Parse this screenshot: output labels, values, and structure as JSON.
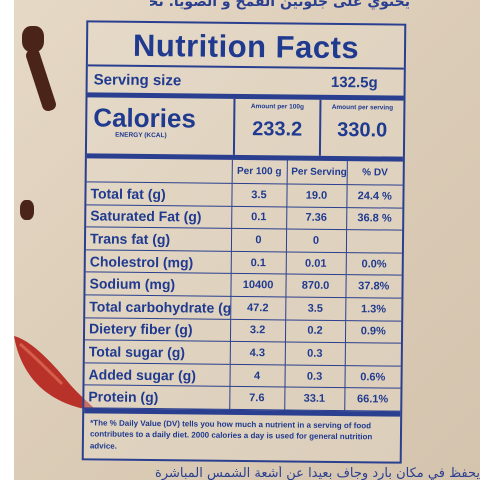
{
  "header_arabic": "يحتوي على جلوتين القمح و الصويا. تحذير الحساسية",
  "footer_arabic": "يحفظ في مكان بارد وجاف بعيدا عن أشعة الشمس المباشرة",
  "panel": {
    "title": "Nutrition Facts",
    "serving_label": "Serving size",
    "serving_value": "132.5g",
    "calories_label": "Calories",
    "calories_sub": "ENERGY (KCAL)",
    "amount_per_100g_label": "Amount per 100g",
    "amount_per_serving_label": "Amount per serving",
    "calories_per_100g": "233.2",
    "calories_per_serving": "330.0",
    "col_per_100g": "Per 100 g",
    "col_per_serving": "Per Serving",
    "col_dv": "% DV",
    "rows": [
      {
        "name": "Total fat (g)",
        "per100": "3.5",
        "serving": "19.0",
        "dv": "24.4 %"
      },
      {
        "name": "Saturated Fat (g)",
        "per100": "0.1",
        "serving": "7.36",
        "dv": "36.8 %"
      },
      {
        "name": "Trans fat (g)",
        "per100": "0",
        "serving": "0",
        "dv": ""
      },
      {
        "name": "Cholestrol (mg)",
        "per100": "0.1",
        "serving": "0.01",
        "dv": "0.0%"
      },
      {
        "name": "Sodium (mg)",
        "per100": "10400",
        "serving": "870.0",
        "dv": "37.8%"
      },
      {
        "name": "Total carbohydrate (g)",
        "per100": "47.2",
        "serving": "3.5",
        "dv": "1.3%"
      },
      {
        "name": "Dietery fiber (g)",
        "per100": "3.2",
        "serving": "0.2",
        "dv": "0.9%"
      },
      {
        "name": "Total sugar (g)",
        "per100": "4.3",
        "serving": "0.3",
        "dv": ""
      },
      {
        "name": "Added sugar (g)",
        "per100": "4",
        "serving": "0.3",
        "dv": "0.6%"
      },
      {
        "name": "Protein (g)",
        "per100": "7.6",
        "serving": "33.1",
        "dv": "66.1%"
      }
    ],
    "note": "*The % Daily Value (DV) tells you how much a nutrient in a serving of food contributes to a daily diet. 2000 calories a day is used for general nutrition advice."
  },
  "colors": {
    "ink": "#2a3f8f",
    "paper": "#e0d2be",
    "chili": "#b8322a",
    "clove": "#4a2418"
  }
}
